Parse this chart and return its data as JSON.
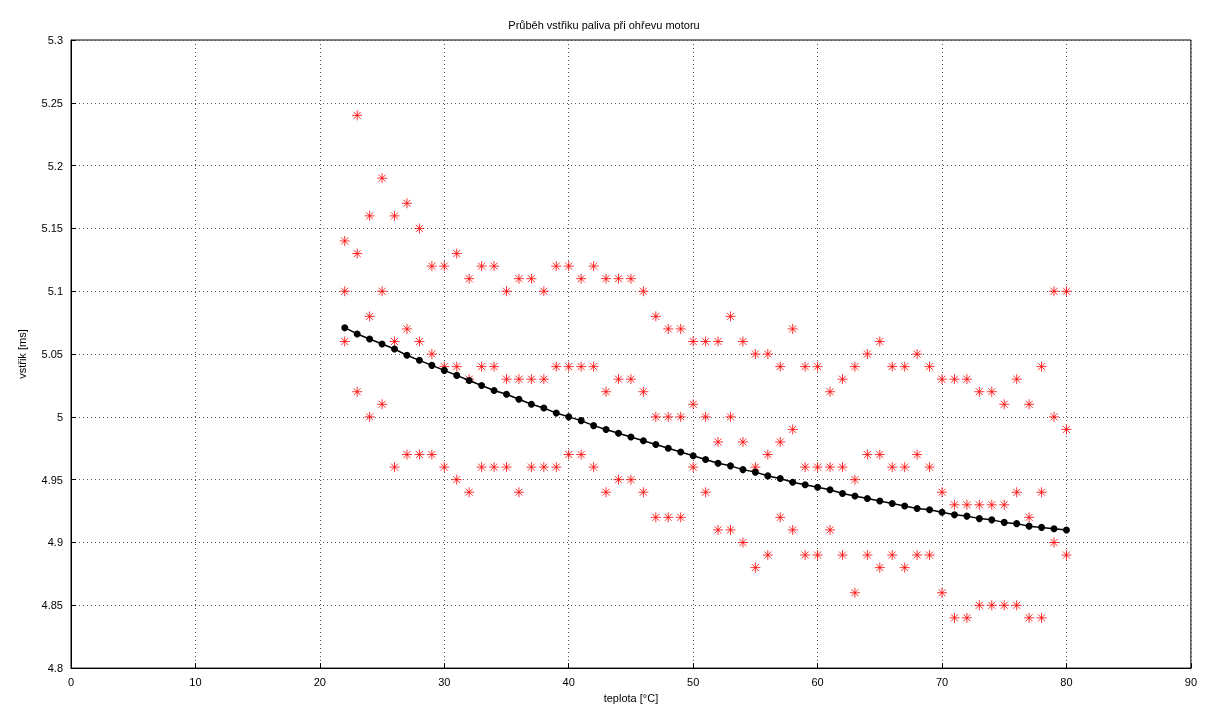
{
  "chart_data": {
    "type": "scatter",
    "title": "Průběh vstřiku paliva při ohřevu motoru",
    "xlabel": "teplota [°C]",
    "ylabel": "vstřik [ms]",
    "xlim": [
      0,
      90
    ],
    "xticks": [
      0,
      10,
      20,
      30,
      40,
      50,
      60,
      70,
      80,
      90
    ],
    "ylim": [
      4.8,
      5.3
    ],
    "yticks": [
      4.8,
      4.85,
      4.9,
      4.95,
      5,
      5.05,
      5.1,
      5.15,
      5.2,
      5.25,
      5.3
    ],
    "grid": true,
    "series": [
      {
        "marker": "cross",
        "color": "#ff0000",
        "x": [
          22,
          22,
          22,
          23,
          23,
          23,
          24,
          24,
          24,
          25,
          25,
          25,
          26,
          26,
          26,
          27,
          27,
          27,
          28,
          28,
          28,
          29,
          29,
          29,
          30,
          30,
          30,
          31,
          31,
          31,
          32,
          32,
          32,
          33,
          33,
          33,
          34,
          34,
          34,
          35,
          35,
          35,
          36,
          36,
          36,
          37,
          37,
          37,
          38,
          38,
          38,
          39,
          39,
          39,
          40,
          40,
          40,
          41,
          41,
          41,
          42,
          42,
          42,
          43,
          43,
          43,
          44,
          44,
          44,
          45,
          45,
          45,
          46,
          46,
          46,
          47,
          47,
          47,
          48,
          48,
          48,
          49,
          49,
          49,
          50,
          50,
          50,
          51,
          51,
          51,
          52,
          52,
          52,
          53,
          53,
          53,
          54,
          54,
          54,
          55,
          55,
          55,
          56,
          56,
          56,
          57,
          57,
          57,
          58,
          58,
          58,
          59,
          59,
          59,
          60,
          60,
          60,
          61,
          61,
          61,
          62,
          62,
          62,
          63,
          63,
          63,
          64,
          64,
          64,
          65,
          65,
          65,
          66,
          66,
          66,
          67,
          67,
          67,
          68,
          68,
          68,
          69,
          69,
          69,
          70,
          70,
          70,
          71,
          71,
          71,
          72,
          72,
          72,
          73,
          73,
          73,
          74,
          74,
          74,
          75,
          75,
          75,
          76,
          76,
          76,
          77,
          77,
          77,
          78,
          78,
          78,
          79,
          79,
          79,
          80,
          80,
          80
        ],
        "values": [
          5.14,
          5.1,
          5.06,
          5.24,
          5.13,
          5.02,
          5.16,
          5.08,
          5.0,
          5.19,
          5.1,
          5.01,
          5.16,
          5.06,
          4.96,
          5.17,
          5.07,
          4.97,
          5.15,
          5.06,
          4.97,
          5.12,
          5.05,
          4.97,
          5.12,
          5.04,
          4.96,
          5.13,
          5.04,
          4.95,
          5.11,
          5.03,
          4.94,
          5.12,
          5.04,
          4.96,
          5.12,
          5.04,
          4.96,
          5.1,
          5.03,
          4.96,
          5.11,
          5.03,
          4.94,
          5.11,
          5.03,
          4.96,
          5.1,
          5.03,
          4.96,
          5.12,
          5.04,
          4.96,
          5.12,
          5.04,
          4.97,
          5.11,
          5.04,
          4.97,
          5.12,
          5.04,
          4.96,
          5.11,
          5.02,
          4.94,
          5.11,
          5.03,
          4.95,
          5.11,
          5.03,
          4.95,
          5.1,
          5.02,
          4.94,
          5.08,
          5.0,
          4.92,
          5.07,
          5.0,
          4.92,
          5.07,
          5.0,
          4.92,
          5.06,
          5.01,
          4.96,
          5.06,
          5.0,
          4.94,
          5.06,
          4.98,
          4.91,
          5.08,
          5.0,
          4.91,
          5.06,
          4.98,
          4.9,
          5.05,
          4.96,
          4.88,
          5.05,
          4.97,
          4.89,
          5.04,
          4.98,
          4.92,
          5.07,
          4.99,
          4.91,
          5.04,
          4.96,
          4.89,
          5.04,
          4.96,
          4.89,
          5.02,
          4.96,
          4.91,
          5.03,
          4.96,
          4.89,
          5.04,
          4.95,
          4.86,
          5.05,
          4.97,
          4.89,
          5.06,
          4.97,
          4.88,
          5.04,
          4.96,
          4.89,
          5.04,
          4.96,
          4.88,
          5.05,
          4.97,
          4.89,
          5.04,
          4.96,
          4.89,
          5.03,
          4.94,
          4.86,
          5.03,
          4.93,
          4.84,
          5.03,
          4.93,
          4.84,
          5.02,
          4.93,
          4.85,
          5.02,
          4.93,
          4.85,
          5.01,
          4.93,
          4.85,
          5.03,
          4.94,
          4.85,
          5.01,
          4.92,
          4.84,
          5.04,
          4.94,
          4.84,
          5.1,
          5.0,
          4.9,
          5.1,
          4.99,
          4.89
        ]
      },
      {
        "type": "line",
        "marker": "circle",
        "color": "#000000",
        "x": [
          22,
          23,
          24,
          25,
          26,
          27,
          28,
          29,
          30,
          31,
          32,
          33,
          34,
          35,
          36,
          37,
          38,
          39,
          40,
          41,
          42,
          43,
          44,
          45,
          46,
          47,
          48,
          49,
          50,
          51,
          52,
          53,
          54,
          55,
          56,
          57,
          58,
          59,
          60,
          61,
          62,
          63,
          64,
          65,
          66,
          67,
          68,
          69,
          70,
          71,
          72,
          73,
          74,
          75,
          76,
          77,
          78,
          79,
          80
        ],
        "values": [
          5.071,
          5.066,
          5.062,
          5.058,
          5.054,
          5.049,
          5.045,
          5.041,
          5.037,
          5.033,
          5.029,
          5.025,
          5.021,
          5.018,
          5.014,
          5.01,
          5.007,
          5.003,
          5.0,
          4.997,
          4.993,
          4.99,
          4.987,
          4.984,
          4.981,
          4.978,
          4.975,
          4.972,
          4.969,
          4.966,
          4.963,
          4.961,
          4.958,
          4.956,
          4.953,
          4.951,
          4.948,
          4.946,
          4.944,
          4.942,
          4.939,
          4.937,
          4.935,
          4.933,
          4.931,
          4.929,
          4.927,
          4.926,
          4.924,
          4.922,
          4.921,
          4.919,
          4.918,
          4.916,
          4.915,
          4.913,
          4.912,
          4.911,
          4.91
        ]
      }
    ]
  }
}
